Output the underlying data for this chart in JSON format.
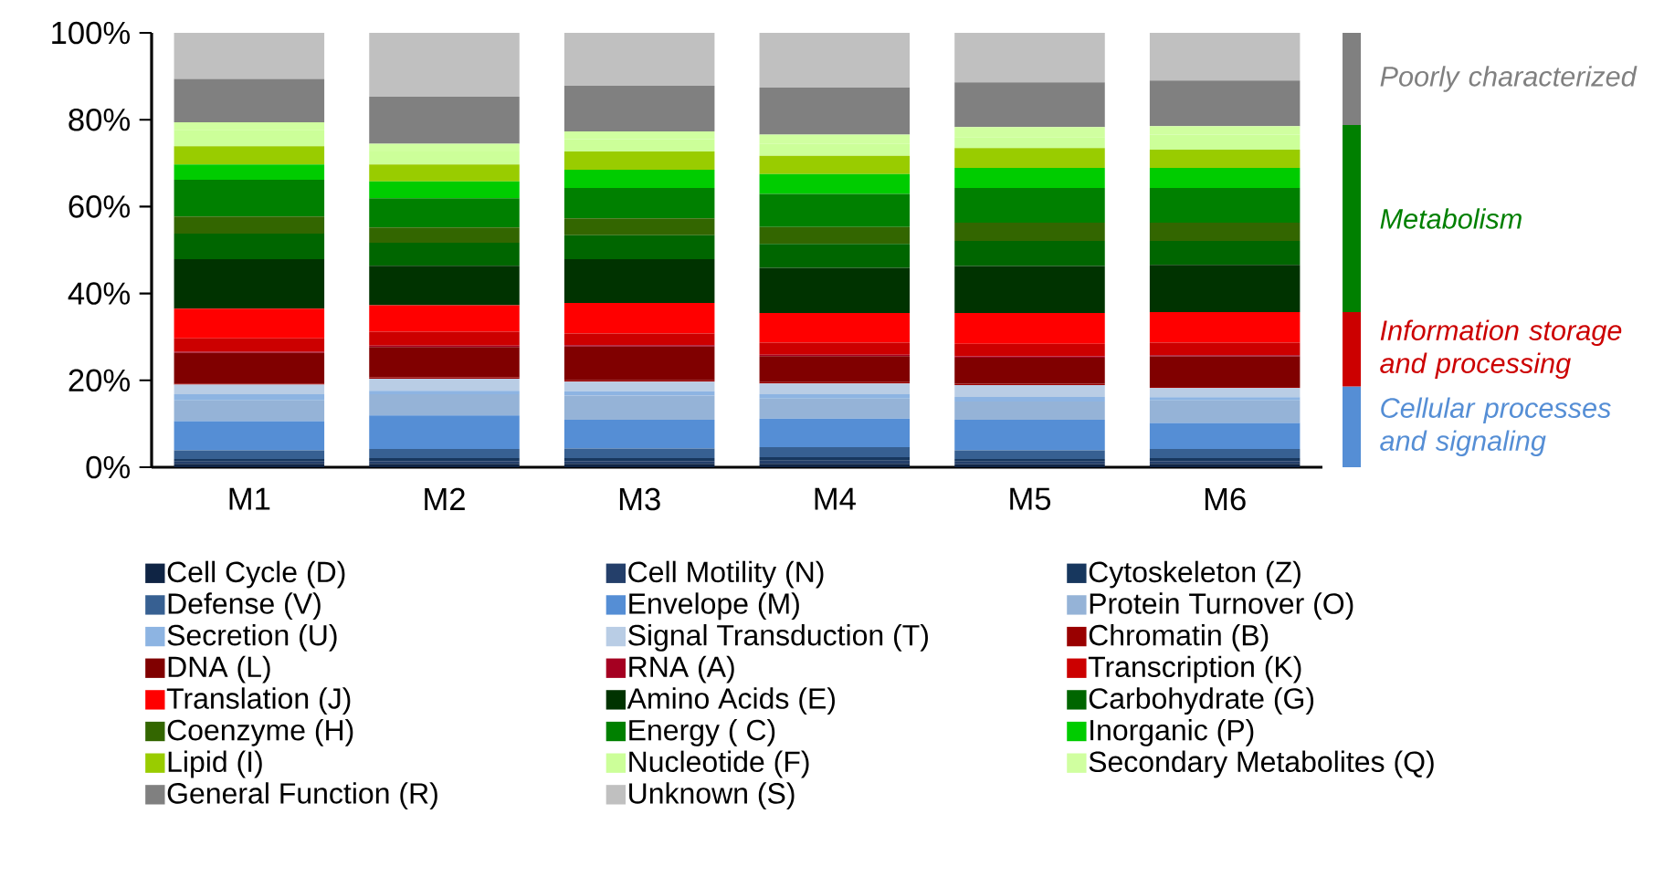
{
  "chart_data": {
    "type": "bar",
    "stacked": true,
    "categories": [
      "M1",
      "M2",
      "M3",
      "M4",
      "M5",
      "M6"
    ],
    "ylim": [
      0,
      100
    ],
    "yticks": [
      {
        "value": 0,
        "label": "0%"
      },
      {
        "value": 20,
        "label": "20%"
      },
      {
        "value": 40,
        "label": "40%"
      },
      {
        "value": 60,
        "label": "60%"
      },
      {
        "value": 80,
        "label": "80%"
      },
      {
        "value": 100,
        "label": "100%"
      }
    ],
    "grid": false,
    "legend": "bottom",
    "series": [
      {
        "name": "Cell Cycle (D)",
        "color": "#0f2444",
        "values": [
          0.8,
          0.8,
          0.8,
          0.8,
          0.7,
          0.8
        ]
      },
      {
        "name": "Cell Motility (N)",
        "color": "#243f6a",
        "values": [
          0.5,
          0.6,
          0.6,
          0.7,
          0.6,
          0.6
        ]
      },
      {
        "name": "Cytoskeleton (Z)",
        "color": "#17375e",
        "values": [
          0.6,
          0.7,
          0.7,
          0.8,
          0.6,
          0.7
        ]
      },
      {
        "name": "Defense (V)",
        "color": "#376092",
        "values": [
          2.0,
          2.1,
          2.2,
          2.3,
          2.0,
          2.1
        ]
      },
      {
        "name": "Envelope (M)",
        "color": "#558ed5",
        "values": [
          6.7,
          7.7,
          6.6,
          6.6,
          7.0,
          6.0
        ]
      },
      {
        "name": "Protein Turnover (O)",
        "color": "#95b3d7",
        "values": [
          4.8,
          4.9,
          5.6,
          4.6,
          4.2,
          5.2
        ]
      },
      {
        "name": "Secretion (U)",
        "color": "#8db4e2",
        "values": [
          1.4,
          0.8,
          1.0,
          1.0,
          1.1,
          0.7
        ]
      },
      {
        "name": "Signal Transduction (T)",
        "color": "#b9cde5",
        "values": [
          2.2,
          2.8,
          2.2,
          2.5,
          2.7,
          2.1
        ]
      },
      {
        "name": "Chromatin (B)",
        "color": "#990000",
        "values": [
          0.3,
          0.3,
          0.3,
          0.3,
          0.3,
          0.3
        ]
      },
      {
        "name": "DNA (L)",
        "color": "#800000",
        "values": [
          7.0,
          7.0,
          7.8,
          6.0,
          6.0,
          7.0
        ]
      },
      {
        "name": "RNA (A)",
        "color": "#a50021",
        "values": [
          0.3,
          0.3,
          0.3,
          0.3,
          0.3,
          0.3
        ]
      },
      {
        "name": "Transcription (K)",
        "color": "#cc0000",
        "values": [
          3.1,
          3.2,
          2.7,
          2.8,
          2.9,
          2.9
        ]
      },
      {
        "name": "Translation (J)",
        "color": "#ff0000",
        "values": [
          6.8,
          6.1,
          7.0,
          6.8,
          7.1,
          7.0
        ]
      },
      {
        "name": "Amino Acids (E)",
        "color": "#003300",
        "values": [
          11.4,
          9.1,
          10.1,
          10.4,
          10.8,
          10.9
        ]
      },
      {
        "name": "Carbohydrate (G)",
        "color": "#006600",
        "values": [
          5.9,
          5.3,
          5.5,
          5.5,
          5.8,
          5.5
        ]
      },
      {
        "name": "Coenzyme (H)",
        "color": "#336600",
        "values": [
          3.9,
          3.5,
          3.9,
          3.9,
          4.2,
          4.2
        ]
      },
      {
        "name": "Energy ( C)",
        "color": "#008000",
        "values": [
          8.5,
          6.7,
          7.0,
          7.6,
          8.0,
          8.0
        ]
      },
      {
        "name": "Inorganic (P)",
        "color": "#00cc00",
        "values": [
          3.5,
          3.9,
          4.2,
          4.6,
          4.6,
          4.6
        ]
      },
      {
        "name": "Lipid (I)",
        "color": "#99cc00",
        "values": [
          4.2,
          3.9,
          4.2,
          4.2,
          4.6,
          4.2
        ]
      },
      {
        "name": "Nucleotide (F)",
        "color": "#ccff99",
        "values": [
          3.8,
          3.0,
          2.8,
          2.7,
          2.5,
          3.5
        ]
      },
      {
        "name": "Secondary Metabolites (Q)",
        "color": "#d0ffa0",
        "values": [
          1.7,
          1.8,
          1.8,
          2.2,
          2.3,
          1.9
        ]
      },
      {
        "name": "General Function (R)",
        "color": "#808080",
        "values": [
          10.0,
          10.8,
          10.5,
          10.8,
          10.3,
          10.5
        ]
      },
      {
        "name": "Unknown (S)",
        "color": "#c0c0c0",
        "values": [
          10.6,
          14.7,
          12.2,
          12.6,
          11.4,
          11.0
        ]
      }
    ],
    "annotations": [
      "Cellular processes and signaling",
      "Information storage and processing",
      "Metabolism",
      "Poorly characterized"
    ]
  }
}
